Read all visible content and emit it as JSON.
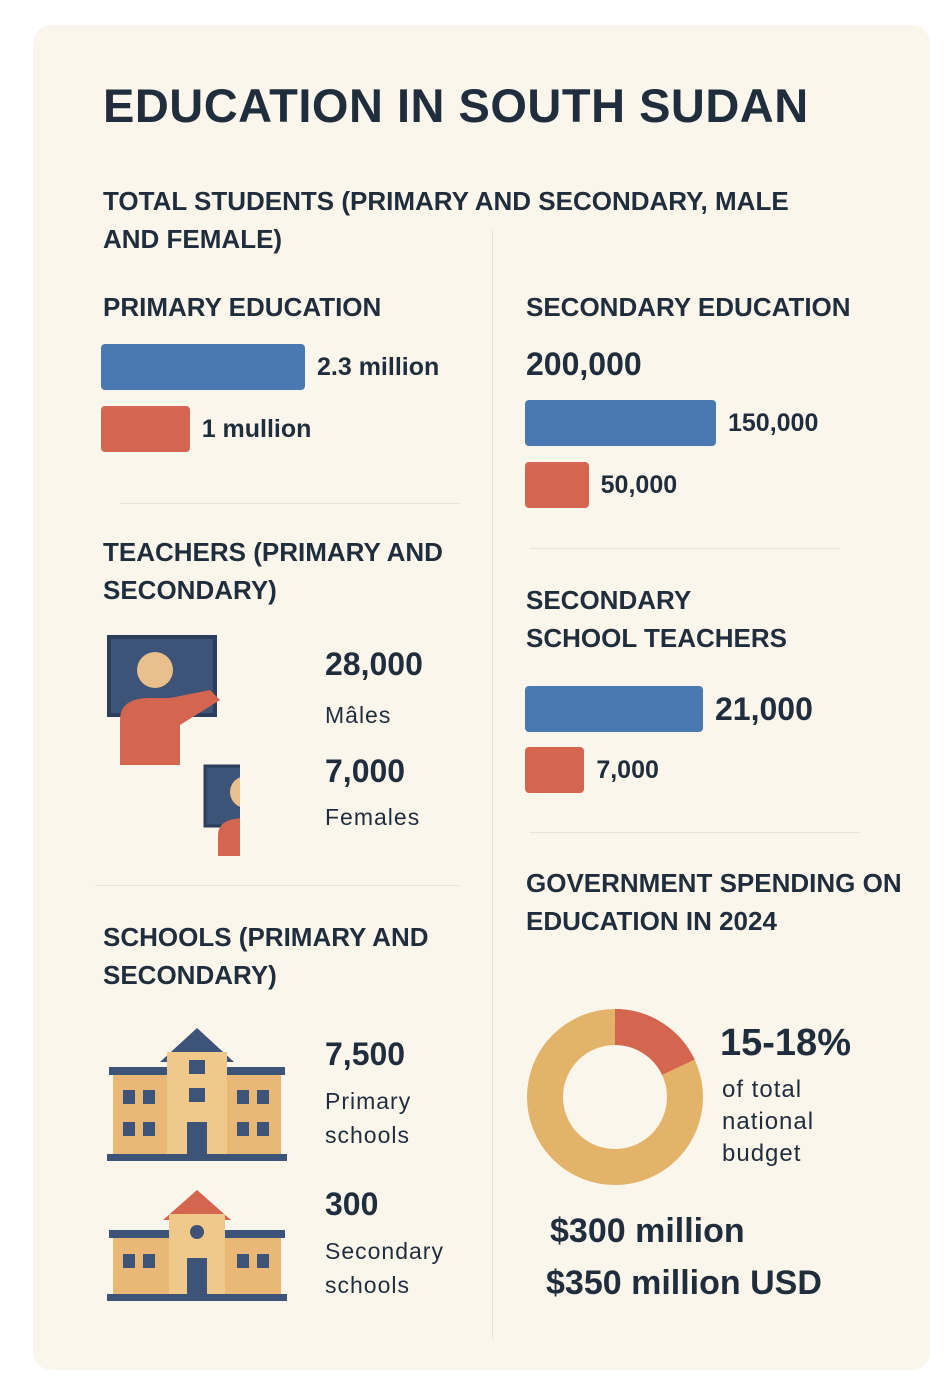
{
  "title": "EDUCATION IN SOUTH SUDAN",
  "students": {
    "heading": "TOTAL STUDENTS (PRIMARY AND SECONDARY, MALE AND FEMALE)",
    "primary": {
      "heading": "PRIMARY EDUCATION",
      "values": [
        2300000,
        1000000
      ],
      "value_labels": [
        "2.3 million",
        "1 mullion"
      ],
      "colors": [
        "#4a78b0",
        "#d4654f"
      ]
    },
    "secondary": {
      "heading": "SECONDARY EDUCATION",
      "total": "200,000",
      "values": [
        150000,
        50000
      ],
      "value_labels": [
        "150,000",
        "50,000"
      ],
      "colors": [
        "#4a78b0",
        "#d4654f"
      ]
    }
  },
  "teachers": {
    "heading": "TEACHERS (PRIMARY AND SECONDARY)",
    "males": {
      "value": "28,000",
      "label": "Mâles"
    },
    "females": {
      "value": "7,000",
      "label": "Females"
    }
  },
  "secondary_teachers": {
    "heading": "SECONDARY SCHOOL TEACHERS",
    "values": [
      21000,
      7000
    ],
    "value_labels": [
      "21,000",
      "7,000"
    ],
    "colors": [
      "#4a78b0",
      "#d4654f"
    ]
  },
  "schools": {
    "heading": "SCHOOLS (PRIMARY AND SECONDARY)",
    "primary": {
      "value": "7,500",
      "label": "Primary schools"
    },
    "secondary": {
      "value": "300",
      "label": "Secondary schools"
    }
  },
  "spending": {
    "heading": "GOVERNMENT SPENDING ON EDUCATION IN 2024",
    "share_label": "15-18%",
    "share_range": [
      15,
      18
    ],
    "share_caption": "of total national budget",
    "amounts": [
      "$300 million",
      "$350 million USD"
    ],
    "colors": [
      "#d4654f",
      "#e3b36a"
    ]
  }
}
